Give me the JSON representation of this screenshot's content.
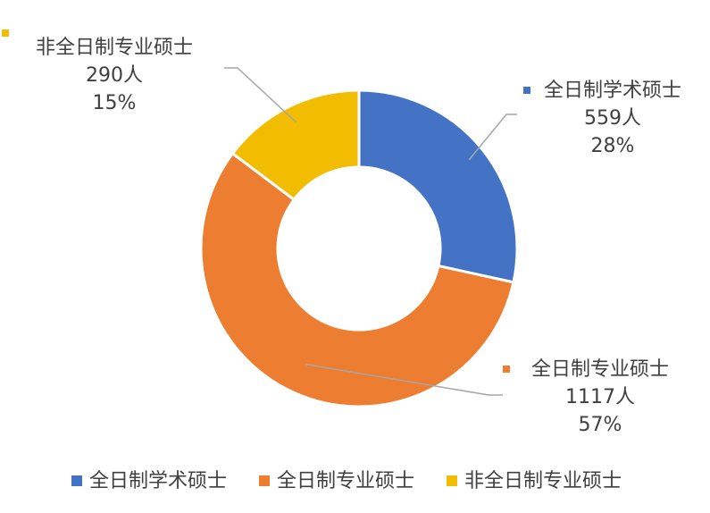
{
  "chart_data": {
    "type": "pie",
    "donut": true,
    "title": "",
    "categories": [
      "全日制学术硕士",
      "全日制专业硕士",
      "非全日制专业硕士"
    ],
    "values": [
      559,
      1117,
      290
    ],
    "percents": [
      "28%",
      "57%",
      "15%"
    ],
    "value_labels": [
      "559人",
      "1117人",
      "290人"
    ],
    "colors": [
      "#4472C4",
      "#ED7D31",
      "#F2BC00"
    ],
    "legend_position": "bottom"
  }
}
